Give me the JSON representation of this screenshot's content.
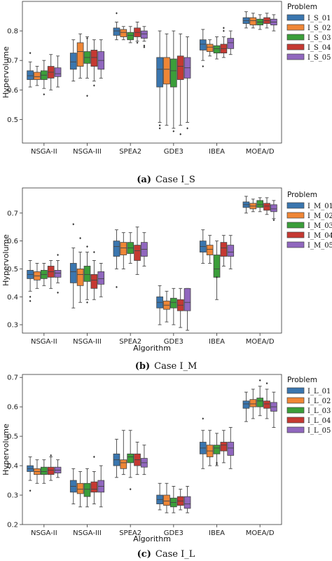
{
  "palette": [
    "#3a76af",
    "#ef8636",
    "#3b9e3a",
    "#c53932",
    "#9067be"
  ],
  "chart_data": [
    {
      "type": "box",
      "caption_label": "(a)",
      "caption_text": "Case I_S",
      "ylabel": "Hypervolume",
      "xlabel": "",
      "ylim": [
        0.42,
        0.9
      ],
      "yticks": [
        0.5,
        0.6,
        0.7,
        0.8
      ],
      "legend_title": "Problem",
      "legend_position": "right",
      "categories": [
        "NSGA-II",
        "NSGA-III",
        "SPEA2",
        "GDE3",
        "IBEA",
        "MOEA/D"
      ],
      "series": [
        {
          "name": "I_S_01",
          "boxes": [
            [
              0.61,
              0.635,
              0.648,
              0.665,
              0.695
            ],
            [
              0.63,
              0.67,
              0.695,
              0.725,
              0.77
            ],
            [
              0.77,
              0.785,
              0.8,
              0.81,
              0.83
            ],
            [
              0.49,
              0.61,
              0.67,
              0.71,
              0.8
            ],
            [
              0.7,
              0.735,
              0.755,
              0.77,
              0.805
            ],
            [
              0.81,
              0.825,
              0.835,
              0.845,
              0.865
            ]
          ],
          "outliers": [
            [
              0.725
            ],
            [],
            [
              0.86
            ],
            [
              0.48,
              0.47
            ],
            [
              0.68
            ],
            []
          ]
        },
        {
          "name": "I_S_02",
          "boxes": [
            [
              0.615,
              0.635,
              0.645,
              0.66,
              0.68
            ],
            [
              0.64,
              0.68,
              0.73,
              0.76,
              0.79
            ],
            [
              0.77,
              0.78,
              0.795,
              0.805,
              0.815
            ],
            [
              0.48,
              0.62,
              0.67,
              0.71,
              0.79
            ],
            [
              0.715,
              0.73,
              0.745,
              0.755,
              0.77
            ],
            [
              0.81,
              0.82,
              0.835,
              0.845,
              0.86
            ]
          ],
          "outliers": [
            [],
            [],
            [],
            [],
            [],
            []
          ]
        },
        {
          "name": "I_S_03",
          "boxes": [
            [
              0.605,
              0.635,
              0.65,
              0.665,
              0.7
            ],
            [
              0.64,
              0.69,
              0.71,
              0.73,
              0.78
            ],
            [
              0.76,
              0.77,
              0.785,
              0.795,
              0.815
            ],
            [
              0.47,
              0.61,
              0.665,
              0.705,
              0.8
            ],
            [
              0.705,
              0.725,
              0.74,
              0.75,
              0.78
            ],
            [
              0.805,
              0.82,
              0.83,
              0.84,
              0.855
            ]
          ],
          "outliers": [
            [
              0.585
            ],
            [
              0.775,
              0.58
            ],
            [],
            [
              0.46
            ],
            [],
            []
          ]
        },
        {
          "name": "I_S_04",
          "boxes": [
            [
              0.6,
              0.64,
              0.66,
              0.68,
              0.72
            ],
            [
              0.63,
              0.68,
              0.71,
              0.735,
              0.77
            ],
            [
              0.765,
              0.78,
              0.795,
              0.81,
              0.83
            ],
            [
              0.48,
              0.635,
              0.68,
              0.715,
              0.79
            ],
            [
              0.71,
              0.725,
              0.74,
              0.755,
              0.78
            ],
            [
              0.81,
              0.825,
              0.835,
              0.845,
              0.86
            ]
          ],
          "outliers": [
            [],
            [
              0.615
            ],
            [
              0.76
            ],
            [
              0.45
            ],
            [
              0.81,
              0.8
            ],
            []
          ]
        },
        {
          "name": "I_S_05",
          "boxes": [
            [
              0.61,
              0.645,
              0.655,
              0.675,
              0.715
            ],
            [
              0.64,
              0.67,
              0.7,
              0.73,
              0.77
            ],
            [
              0.765,
              0.775,
              0.79,
              0.8,
              0.815
            ],
            [
              0.49,
              0.64,
              0.675,
              0.71,
              0.78
            ],
            [
              0.72,
              0.74,
              0.76,
              0.775,
              0.8
            ],
            [
              0.8,
              0.82,
              0.83,
              0.84,
              0.855
            ]
          ],
          "outliers": [
            [],
            [],
            [
              0.75,
              0.745
            ],
            [
              0.47
            ],
            [],
            []
          ]
        }
      ]
    },
    {
      "type": "box",
      "caption_label": "(b)",
      "caption_text": "Case I_M",
      "ylabel": "Hypervolume",
      "xlabel": "Algorithm",
      "ylim": [
        0.27,
        0.79
      ],
      "yticks": [
        0.3,
        0.4,
        0.5,
        0.6,
        0.7
      ],
      "legend_title": "Problem",
      "legend_position": "right",
      "categories": [
        "NSGA-II",
        "NSGA-III",
        "SPEA2",
        "GDE3",
        "IBEA",
        "MOEA/D"
      ],
      "series": [
        {
          "name": "I_M_01",
          "boxes": [
            [
              0.42,
              0.465,
              0.48,
              0.495,
              0.53
            ],
            [
              0.36,
              0.45,
              0.49,
              0.52,
              0.575
            ],
            [
              0.5,
              0.545,
              0.58,
              0.6,
              0.64
            ],
            [
              0.3,
              0.36,
              0.38,
              0.4,
              0.44
            ],
            [
              0.52,
              0.56,
              0.58,
              0.6,
              0.64
            ],
            [
              0.7,
              0.72,
              0.73,
              0.74,
              0.76
            ]
          ],
          "outliers": [
            [
              0.4,
              0.385
            ],
            [
              0.66
            ],
            [
              0.435
            ],
            [],
            [],
            []
          ]
        },
        {
          "name": "I_M_02",
          "boxes": [
            [
              0.43,
              0.46,
              0.475,
              0.49,
              0.52
            ],
            [
              0.38,
              0.44,
              0.48,
              0.5,
              0.56
            ],
            [
              0.5,
              0.55,
              0.575,
              0.595,
              0.63
            ],
            [
              0.31,
              0.355,
              0.37,
              0.385,
              0.42
            ],
            [
              0.52,
              0.55,
              0.57,
              0.585,
              0.62
            ],
            [
              0.705,
              0.715,
              0.725,
              0.735,
              0.75
            ]
          ],
          "outliers": [
            [],
            [
              0.61
            ],
            [],
            [],
            [],
            []
          ]
        },
        {
          "name": "I_M_03",
          "boxes": [
            [
              0.44,
              0.465,
              0.48,
              0.495,
              0.52
            ],
            [
              0.39,
              0.455,
              0.48,
              0.51,
              0.56
            ],
            [
              0.52,
              0.555,
              0.575,
              0.595,
              0.63
            ],
            [
              0.3,
              0.36,
              0.38,
              0.395,
              0.43
            ],
            [
              0.39,
              0.47,
              0.5,
              0.55,
              0.6
            ],
            [
              0.705,
              0.72,
              0.73,
              0.745,
              0.755
            ]
          ],
          "outliers": [
            [],
            [
              0.58,
              0.38
            ],
            [],
            [],
            [
              0.47
            ],
            []
          ]
        },
        {
          "name": "I_M_04",
          "boxes": [
            [
              0.43,
              0.47,
              0.49,
              0.51,
              0.53
            ],
            [
              0.39,
              0.43,
              0.46,
              0.48,
              0.53
            ],
            [
              0.48,
              0.53,
              0.565,
              0.585,
              0.65
            ],
            [
              0.29,
              0.35,
              0.37,
              0.39,
              0.43
            ],
            [
              0.51,
              0.545,
              0.575,
              0.595,
              0.62
            ],
            [
              0.695,
              0.71,
              0.725,
              0.735,
              0.755
            ]
          ],
          "outliers": [
            [],
            [
              0.56
            ],
            [],
            [],
            [],
            []
          ]
        },
        {
          "name": "I_M_05",
          "boxes": [
            [
              0.45,
              0.47,
              0.485,
              0.495,
              0.53
            ],
            [
              0.4,
              0.445,
              0.465,
              0.49,
              0.52
            ],
            [
              0.51,
              0.545,
              0.57,
              0.595,
              0.63
            ],
            [
              0.28,
              0.35,
              0.38,
              0.43,
              0.43
            ],
            [
              0.5,
              0.545,
              0.56,
              0.585,
              0.62
            ],
            [
              0.68,
              0.705,
              0.715,
              0.73,
              0.745
            ]
          ],
          "outliers": [
            [
              0.55,
              0.415
            ],
            [],
            [],
            [],
            [],
            [
              0.675
            ]
          ]
        }
      ]
    },
    {
      "type": "box",
      "caption_label": "(c)",
      "caption_text": "Case I_L",
      "ylabel": "Hypervolume",
      "xlabel": "Algorithm",
      "ylim": [
        0.2,
        0.71
      ],
      "yticks": [
        0.2,
        0.3,
        0.4,
        0.5,
        0.6,
        0.7
      ],
      "legend_title": "Problem",
      "legend_position": "right",
      "categories": [
        "NSGA-II",
        "NSGA-III",
        "SPEA2",
        "GDE3",
        "IBEA",
        "MOEA/D"
      ],
      "series": [
        {
          "name": "I_L_01",
          "boxes": [
            [
              0.35,
              0.38,
              0.39,
              0.4,
              0.43
            ],
            [
              0.27,
              0.31,
              0.33,
              0.35,
              0.39
            ],
            [
              0.36,
              0.4,
              0.42,
              0.44,
              0.49
            ],
            [
              0.25,
              0.27,
              0.285,
              0.3,
              0.34
            ],
            [
              0.39,
              0.44,
              0.46,
              0.48,
              0.52
            ],
            [
              0.55,
              0.595,
              0.61,
              0.62,
              0.65
            ]
          ],
          "outliers": [
            [
              0.315
            ],
            [],
            [],
            [],
            [
              0.56
            ],
            []
          ]
        },
        {
          "name": "I_L_02",
          "boxes": [
            [
              0.34,
              0.37,
              0.38,
              0.39,
              0.42
            ],
            [
              0.26,
              0.305,
              0.32,
              0.34,
              0.38
            ],
            [
              0.37,
              0.39,
              0.41,
              0.42,
              0.52
            ],
            [
              0.24,
              0.265,
              0.28,
              0.3,
              0.34
            ],
            [
              0.4,
              0.43,
              0.45,
              0.47,
              0.52
            ],
            [
              0.56,
              0.6,
              0.61,
              0.625,
              0.66
            ]
          ],
          "outliers": [
            [],
            [],
            [],
            [],
            [],
            []
          ]
        },
        {
          "name": "I_L_03",
          "boxes": [
            [
              0.34,
              0.37,
              0.38,
              0.395,
              0.42
            ],
            [
              0.26,
              0.295,
              0.32,
              0.34,
              0.39
            ],
            [
              0.36,
              0.41,
              0.43,
              0.44,
              0.52
            ],
            [
              0.24,
              0.26,
              0.275,
              0.29,
              0.33
            ],
            [
              0.4,
              0.44,
              0.46,
              0.47,
              0.51
            ],
            [
              0.57,
              0.6,
              0.62,
              0.63,
              0.67
            ]
          ],
          "outliers": [
            [],
            [],
            [
              0.32
            ],
            [],
            [
              0.41,
              0.405
            ],
            [
              0.69
            ]
          ]
        },
        {
          "name": "I_L_04",
          "boxes": [
            [
              0.35,
              0.37,
              0.385,
              0.395,
              0.43
            ],
            [
              0.27,
              0.31,
              0.32,
              0.345,
              0.38
            ],
            [
              0.37,
              0.4,
              0.42,
              0.44,
              0.48
            ],
            [
              0.25,
              0.265,
              0.28,
              0.295,
              0.32
            ],
            [
              0.41,
              0.45,
              0.47,
              0.48,
              0.52
            ],
            [
              0.56,
              0.595,
              0.61,
              0.62,
              0.66
            ]
          ],
          "outliers": [
            [
              0.435
            ],
            [
              0.43
            ],
            [],
            [],
            [],
            [
              0.68
            ]
          ]
        },
        {
          "name": "I_L_05",
          "boxes": [
            [
              0.36,
              0.375,
              0.385,
              0.395,
              0.42
            ],
            [
              0.26,
              0.31,
              0.33,
              0.35,
              0.4
            ],
            [
              0.37,
              0.395,
              0.41,
              0.425,
              0.47
            ],
            [
              0.24,
              0.255,
              0.27,
              0.295,
              0.33
            ],
            [
              0.39,
              0.435,
              0.46,
              0.48,
              0.53
            ],
            [
              0.53,
              0.585,
              0.6,
              0.615,
              0.65
            ]
          ],
          "outliers": [
            [],
            [],
            [],
            [],
            [],
            []
          ]
        }
      ]
    }
  ]
}
